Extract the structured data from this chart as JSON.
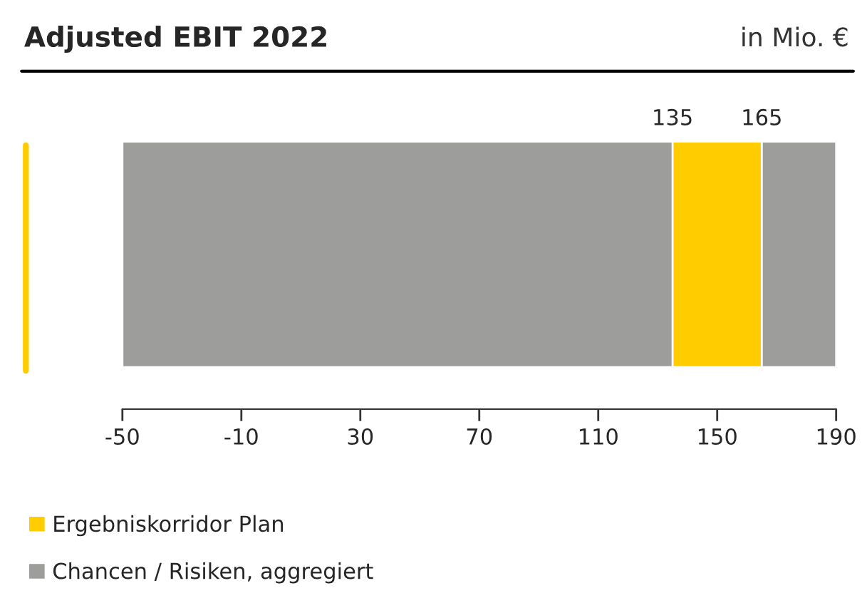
{
  "chart_data": {
    "type": "bar",
    "orientation": "horizontal",
    "title": "Adjusted EBIT 2022",
    "subtitle": "in Mio. €",
    "categories": [
      null
    ],
    "series": [
      {
        "name": "Ergebniskorridor Plan",
        "color": "#ffcc00",
        "values": [
          30
        ],
        "base": [
          135
        ]
      },
      {
        "name": "Chancen / Risiken, aggregiert",
        "color": "#9d9d9b",
        "values": [
          240
        ],
        "base": [
          -50
        ]
      }
    ],
    "annotations": [
      "135",
      "165"
    ],
    "xlim": [
      -50,
      190
    ],
    "xticks": [
      -50,
      -10,
      30,
      70,
      110,
      150,
      190
    ],
    "tick_labels": "x",
    "grid": false,
    "legend": "bottom left"
  }
}
